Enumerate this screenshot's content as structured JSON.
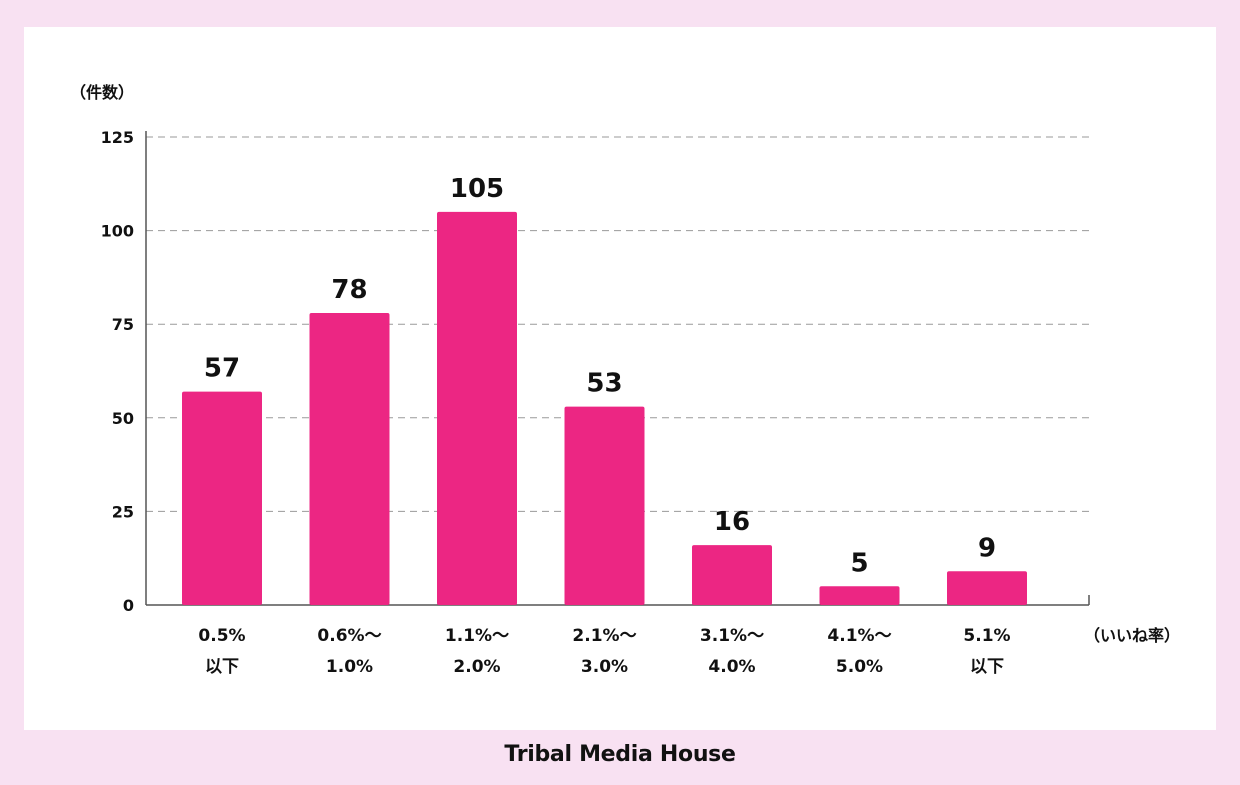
{
  "chart_data": {
    "type": "bar",
    "ylabel": "（件数）",
    "xlabel": "（いいね率）",
    "categories": [
      [
        "0.5%",
        "以下"
      ],
      [
        "0.6%〜",
        "1.0%"
      ],
      [
        "1.1%〜",
        "2.0%"
      ],
      [
        "2.1%〜",
        "3.0%"
      ],
      [
        "3.1%〜",
        "4.0%"
      ],
      [
        "4.1%〜",
        "5.0%"
      ],
      [
        "5.1%",
        "以下"
      ]
    ],
    "values": [
      57,
      78,
      105,
      53,
      16,
      5,
      9
    ],
    "ylim": [
      0,
      125
    ],
    "yticks": [
      0,
      25,
      50,
      75,
      100,
      125
    ],
    "grid": true,
    "bar_color": "#ec2683"
  },
  "footer": {
    "brand": "Tribal Media House"
  }
}
